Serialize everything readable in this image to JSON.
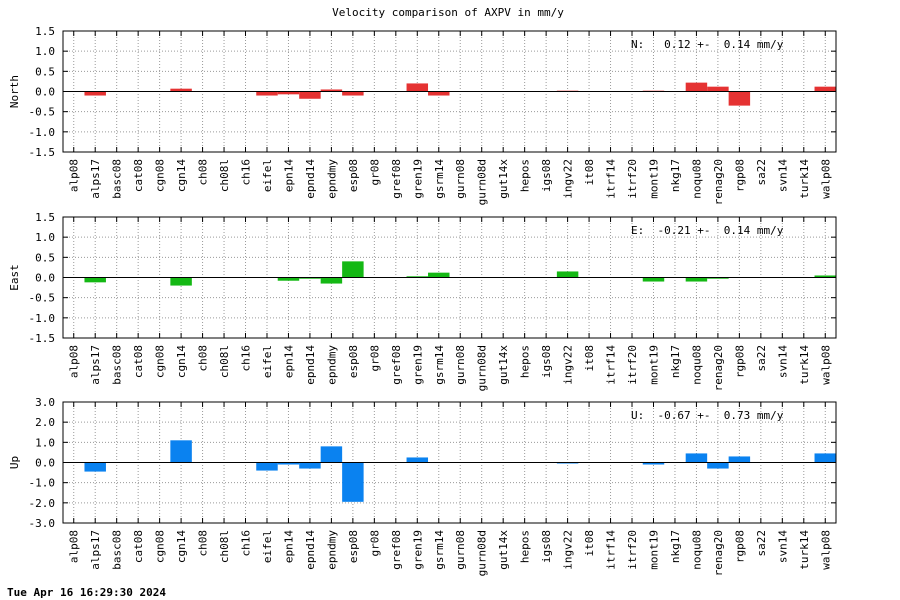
{
  "title": "Velocity comparison of AXPV in mm/y",
  "footer": "Tue Apr 16 16:29:30 2024",
  "chart_data": [
    {
      "type": "bar",
      "ylabel": "North",
      "annotation": "N:   0.12 +-  0.14 mm/y",
      "color": "#e53232",
      "ylim": [
        -1.5,
        1.5
      ],
      "yticks": [
        -1.5,
        -1.0,
        -0.5,
        0.0,
        0.5,
        1.0,
        1.5
      ],
      "ytick_labels": [
        "-1.5",
        "-1.0",
        "-0.5",
        "0.0",
        "0.5",
        "1.0",
        "1.5"
      ],
      "categories": [
        "alp08",
        "alps17",
        "basc08",
        "cat08",
        "cgn08",
        "cgn14",
        "ch08",
        "ch08l",
        "ch16",
        "eifel",
        "epn14",
        "epnd14",
        "epndmy",
        "esp08",
        "gr08",
        "gref08",
        "gren19",
        "gsrm14",
        "gurn08",
        "gurn08d",
        "gut14x",
        "hepos",
        "igs08",
        "ingv22",
        "it08",
        "itrf14",
        "itrf20",
        "mont19",
        "nkg17",
        "noqu08",
        "renag20",
        "rgp08",
        "sa22",
        "svn14",
        "turk14",
        "walp08"
      ],
      "values": [
        null,
        -0.1,
        null,
        null,
        null,
        0.07,
        null,
        null,
        null,
        -0.1,
        -0.07,
        -0.18,
        0.05,
        -0.1,
        null,
        null,
        0.2,
        -0.1,
        null,
        null,
        null,
        null,
        null,
        0.02,
        null,
        null,
        null,
        0.02,
        null,
        0.22,
        0.12,
        -0.35,
        null,
        null,
        null,
        0.12
      ]
    },
    {
      "type": "bar",
      "ylabel": "East",
      "annotation": "E:  -0.21 +-  0.14 mm/y",
      "color": "#14b814",
      "ylim": [
        -1.5,
        1.5
      ],
      "yticks": [
        -1.5,
        -1.0,
        -0.5,
        0.0,
        0.5,
        1.0,
        1.5
      ],
      "ytick_labels": [
        "-1.5",
        "-1.0",
        "-0.5",
        "0.0",
        "0.5",
        "1.0",
        "1.5"
      ],
      "categories": [
        "alp08",
        "alps17",
        "basc08",
        "cat08",
        "cgn08",
        "cgn14",
        "ch08",
        "ch08l",
        "ch16",
        "eifel",
        "epn14",
        "epnd14",
        "epndmy",
        "esp08",
        "gr08",
        "gref08",
        "gren19",
        "gsrm14",
        "gurn08",
        "gurn08d",
        "gut14x",
        "hepos",
        "igs08",
        "ingv22",
        "it08",
        "itrf14",
        "itrf20",
        "mont19",
        "nkg17",
        "noqu08",
        "renag20",
        "rgp08",
        "sa22",
        "svn14",
        "turk14",
        "walp08"
      ],
      "values": [
        null,
        -0.12,
        null,
        null,
        null,
        -0.2,
        null,
        null,
        null,
        null,
        -0.08,
        -0.03,
        -0.15,
        0.4,
        null,
        null,
        0.03,
        0.12,
        null,
        null,
        null,
        null,
        null,
        0.15,
        null,
        null,
        null,
        -0.1,
        null,
        -0.1,
        -0.03,
        null,
        null,
        null,
        null,
        0.05
      ]
    },
    {
      "type": "bar",
      "ylabel": "Up",
      "annotation": "U:  -0.67 +-  0.73 mm/y",
      "color": "#0a82f0",
      "ylim": [
        -3.0,
        3.0
      ],
      "yticks": [
        -3.0,
        -2.0,
        -1.0,
        0.0,
        1.0,
        2.0,
        3.0
      ],
      "ytick_labels": [
        "-3.0",
        "-2.0",
        "-1.0",
        "0.0",
        "1.0",
        "2.0",
        "3.0"
      ],
      "categories": [
        "alp08",
        "alps17",
        "basc08",
        "cat08",
        "cgn08",
        "cgn14",
        "ch08",
        "ch08l",
        "ch16",
        "eifel",
        "epn14",
        "epnd14",
        "epndmy",
        "esp08",
        "gr08",
        "gref08",
        "gren19",
        "gsrm14",
        "gurn08",
        "gurn08d",
        "gut14x",
        "hepos",
        "igs08",
        "ingv22",
        "it08",
        "itrf14",
        "itrf20",
        "mont19",
        "nkg17",
        "noqu08",
        "renag20",
        "rgp08",
        "sa22",
        "svn14",
        "turk14",
        "walp08"
      ],
      "values": [
        null,
        -0.45,
        null,
        null,
        null,
        1.1,
        null,
        null,
        null,
        -0.4,
        -0.1,
        -0.3,
        0.8,
        -1.95,
        null,
        null,
        0.25,
        null,
        null,
        null,
        null,
        null,
        null,
        -0.05,
        null,
        null,
        null,
        -0.1,
        null,
        0.45,
        -0.3,
        0.3,
        null,
        null,
        null,
        0.45
      ]
    }
  ]
}
